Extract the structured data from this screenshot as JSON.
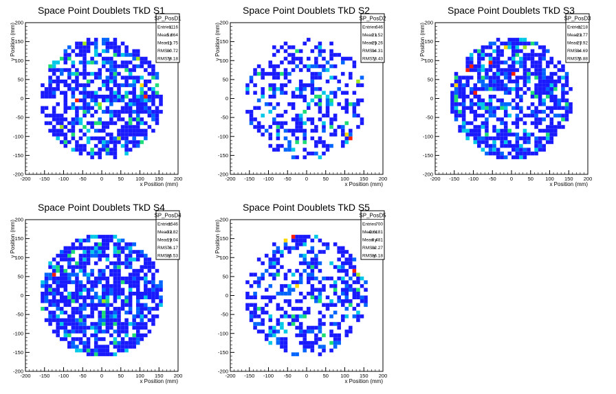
{
  "chart_data": [
    {
      "type": "heatmap",
      "title": "Space Point Doublets TkD S1",
      "xlabel": "x Position (mm)",
      "ylabel": "y Position (mm)",
      "xlim": [
        -200,
        200
      ],
      "ylim": [
        -200,
        200
      ],
      "xticks": [
        "-200",
        "-150",
        "-100",
        "-50",
        "0",
        "50",
        "100",
        "150",
        "200"
      ],
      "yticks": [
        "-200",
        "-150",
        "-100",
        "-50",
        "0",
        "50",
        "100",
        "150",
        "200"
      ],
      "stats": {
        "name": "SP_PosD1",
        "rows": [
          {
            "label": "Entries",
            "value": "1116"
          },
          {
            "label": "Mean x",
            "value": "5.864"
          },
          {
            "label": "Mean y",
            "value": "-11.75"
          },
          {
            "label": "RMS x",
            "value": "80.72"
          },
          {
            "label": "RMS y",
            "value": "78.18"
          }
        ]
      },
      "entries": 1116,
      "mean_x": 5.864,
      "mean_y": -11.75,
      "rms_x": 80.72,
      "rms_y": 78.18,
      "radius": 160,
      "bin_width": 10,
      "occupancy": 0.62,
      "seed": 11,
      "hot": [
        [
          -50,
          140
        ],
        [
          90,
          100
        ],
        [
          -40,
          40
        ],
        [
          100,
          30
        ],
        [
          110,
          0
        ],
        [
          -70,
          -10
        ],
        [
          -10,
          -20
        ],
        [
          90,
          -60
        ],
        [
          40,
          -110
        ],
        [
          -110,
          -80
        ],
        [
          130,
          20
        ]
      ]
    },
    {
      "type": "heatmap",
      "title": "Space Point Doublets TkD S2",
      "xlabel": "x Position (mm)",
      "ylabel": "y Position (mm)",
      "xlim": [
        -200,
        200
      ],
      "ylim": [
        -200,
        200
      ],
      "xticks": [
        "-200",
        "-150",
        "-100",
        "-50",
        "0",
        "50",
        "100",
        "150",
        "200"
      ],
      "yticks": [
        "-200",
        "-150",
        "-100",
        "-50",
        "0",
        "50",
        "100",
        "150",
        "200"
      ],
      "stats": {
        "name": "SP_PosD2",
        "rows": [
          {
            "label": "Entries",
            "value": "646"
          },
          {
            "label": "Mean x",
            "value": "21.52"
          },
          {
            "label": "Mean y",
            "value": "-25.26"
          },
          {
            "label": "RMS x",
            "value": "94.31"
          },
          {
            "label": "RMS y",
            "value": "73.43"
          }
        ]
      },
      "entries": 646,
      "mean_x": 21.52,
      "mean_y": -25.26,
      "rms_x": 94.31,
      "rms_y": 73.43,
      "radius": 160,
      "bin_width": 10,
      "occupancy": 0.4,
      "seed": 23,
      "hot": [
        [
          110,
          -110
        ],
        [
          100,
          -100
        ],
        [
          -150,
          -80
        ],
        [
          60,
          -80
        ],
        [
          130,
          40
        ],
        [
          -40,
          -140
        ],
        [
          20,
          0
        ]
      ]
    },
    {
      "type": "heatmap",
      "title": "Space Point Doublets TkD S3",
      "xlabel": "x Position (mm)",
      "ylabel": "y Position (mm)",
      "xlim": [
        -200,
        200
      ],
      "ylim": [
        -200,
        200
      ],
      "xticks": [
        "-200",
        "-150",
        "-100",
        "-50",
        "0",
        "50",
        "100",
        "150",
        "200"
      ],
      "yticks": [
        "-200",
        "-150",
        "-100",
        "-50",
        "0",
        "50",
        "100",
        "150",
        "200"
      ],
      "stats": {
        "name": "SP_PosD3",
        "rows": [
          {
            "label": "Entries",
            "value": "1218"
          },
          {
            "label": "Mean x",
            "value": "-23.77"
          },
          {
            "label": "Mean y",
            "value": "27.92"
          },
          {
            "label": "RMS x",
            "value": "84.69"
          },
          {
            "label": "RMS y",
            "value": "75.88"
          }
        ]
      },
      "entries": 1218,
      "mean_x": -23.77,
      "mean_y": 27.92,
      "rms_x": 84.69,
      "rms_y": 75.88,
      "radius": 160,
      "bin_width": 10,
      "occupancy": 0.66,
      "seed": 37,
      "hot": [
        [
          -20,
          130
        ],
        [
          -50,
          120
        ],
        [
          -90,
          120
        ],
        [
          -110,
          80
        ],
        [
          -120,
          70
        ],
        [
          -150,
          30
        ],
        [
          -80,
          50
        ],
        [
          0,
          60
        ],
        [
          -100,
          10
        ],
        [
          30,
          130
        ],
        [
          -60,
          90
        ]
      ]
    },
    {
      "type": "heatmap",
      "title": "Space Point Doublets TkD S4",
      "xlabel": "x Position (mm)",
      "ylabel": "y Position (mm)",
      "xlim": [
        -200,
        200
      ],
      "ylim": [
        -200,
        200
      ],
      "xticks": [
        "-200",
        "-150",
        "-100",
        "-50",
        "0",
        "50",
        "100",
        "150",
        "200"
      ],
      "yticks": [
        "-200",
        "-150",
        "-100",
        "-50",
        "0",
        "50",
        "100",
        "150",
        "200"
      ],
      "stats": {
        "name": "SP_PosD4",
        "rows": [
          {
            "label": "Entries",
            "value": "1546"
          },
          {
            "label": "Mean x",
            "value": "-32.82"
          },
          {
            "label": "Mean y",
            "value": "19.04"
          },
          {
            "label": "RMS x",
            "value": "76.17"
          },
          {
            "label": "RMS y",
            "value": "85.53"
          }
        ]
      },
      "entries": 1546,
      "mean_x": -32.82,
      "mean_y": 19.04,
      "rms_x": 76.17,
      "rms_y": 85.53,
      "radius": 160,
      "bin_width": 10,
      "occupancy": 0.74,
      "seed": 41,
      "hot": [
        [
          -90,
          100
        ],
        [
          -80,
          110
        ],
        [
          -70,
          150
        ],
        [
          -120,
          70
        ],
        [
          -130,
          50
        ],
        [
          -110,
          -80
        ],
        [
          -90,
          -110
        ],
        [
          0,
          -20
        ],
        [
          -20,
          160
        ]
      ]
    },
    {
      "type": "heatmap",
      "title": "Space Point Doublets TkD S5",
      "xlabel": "x Position (mm)",
      "ylabel": "y Position (mm)",
      "xlim": [
        -200,
        200
      ],
      "ylim": [
        -200,
        200
      ],
      "xticks": [
        "-200",
        "-150",
        "-100",
        "-50",
        "0",
        "50",
        "100",
        "150",
        "200"
      ],
      "yticks": [
        "-200",
        "-150",
        "-100",
        "-50",
        "0",
        "50",
        "100",
        "150",
        "200"
      ],
      "stats": {
        "name": "SP_PosD5",
        "rows": [
          {
            "label": "Entries",
            "value": "700"
          },
          {
            "label": "Mean x",
            "value": "-0.6181"
          },
          {
            "label": "Mean y",
            "value": "8.481"
          },
          {
            "label": "RMS x",
            "value": "82.27"
          },
          {
            "label": "RMS y",
            "value": "86.18"
          }
        ]
      },
      "entries": 700,
      "mean_x": -0.6181,
      "mean_y": 8.481,
      "rms_x": 82.27,
      "rms_y": 86.18,
      "radius": 160,
      "bin_width": 10,
      "occupancy": 0.42,
      "seed": 53,
      "hot": [
        [
          120,
          60
        ],
        [
          130,
          50
        ],
        [
          -130,
          110
        ],
        [
          -60,
          140
        ],
        [
          -40,
          150
        ],
        [
          -90,
          -110
        ],
        [
          100,
          120
        ],
        [
          -30,
          20
        ]
      ]
    }
  ],
  "colors": {
    "palette": [
      "#1a1aff",
      "#0064ff",
      "#00c8e6",
      "#1edc78",
      "#a0e61e",
      "#ffd700",
      "#ff1e00"
    ],
    "axis": "#000000",
    "background": "#ffffff"
  }
}
